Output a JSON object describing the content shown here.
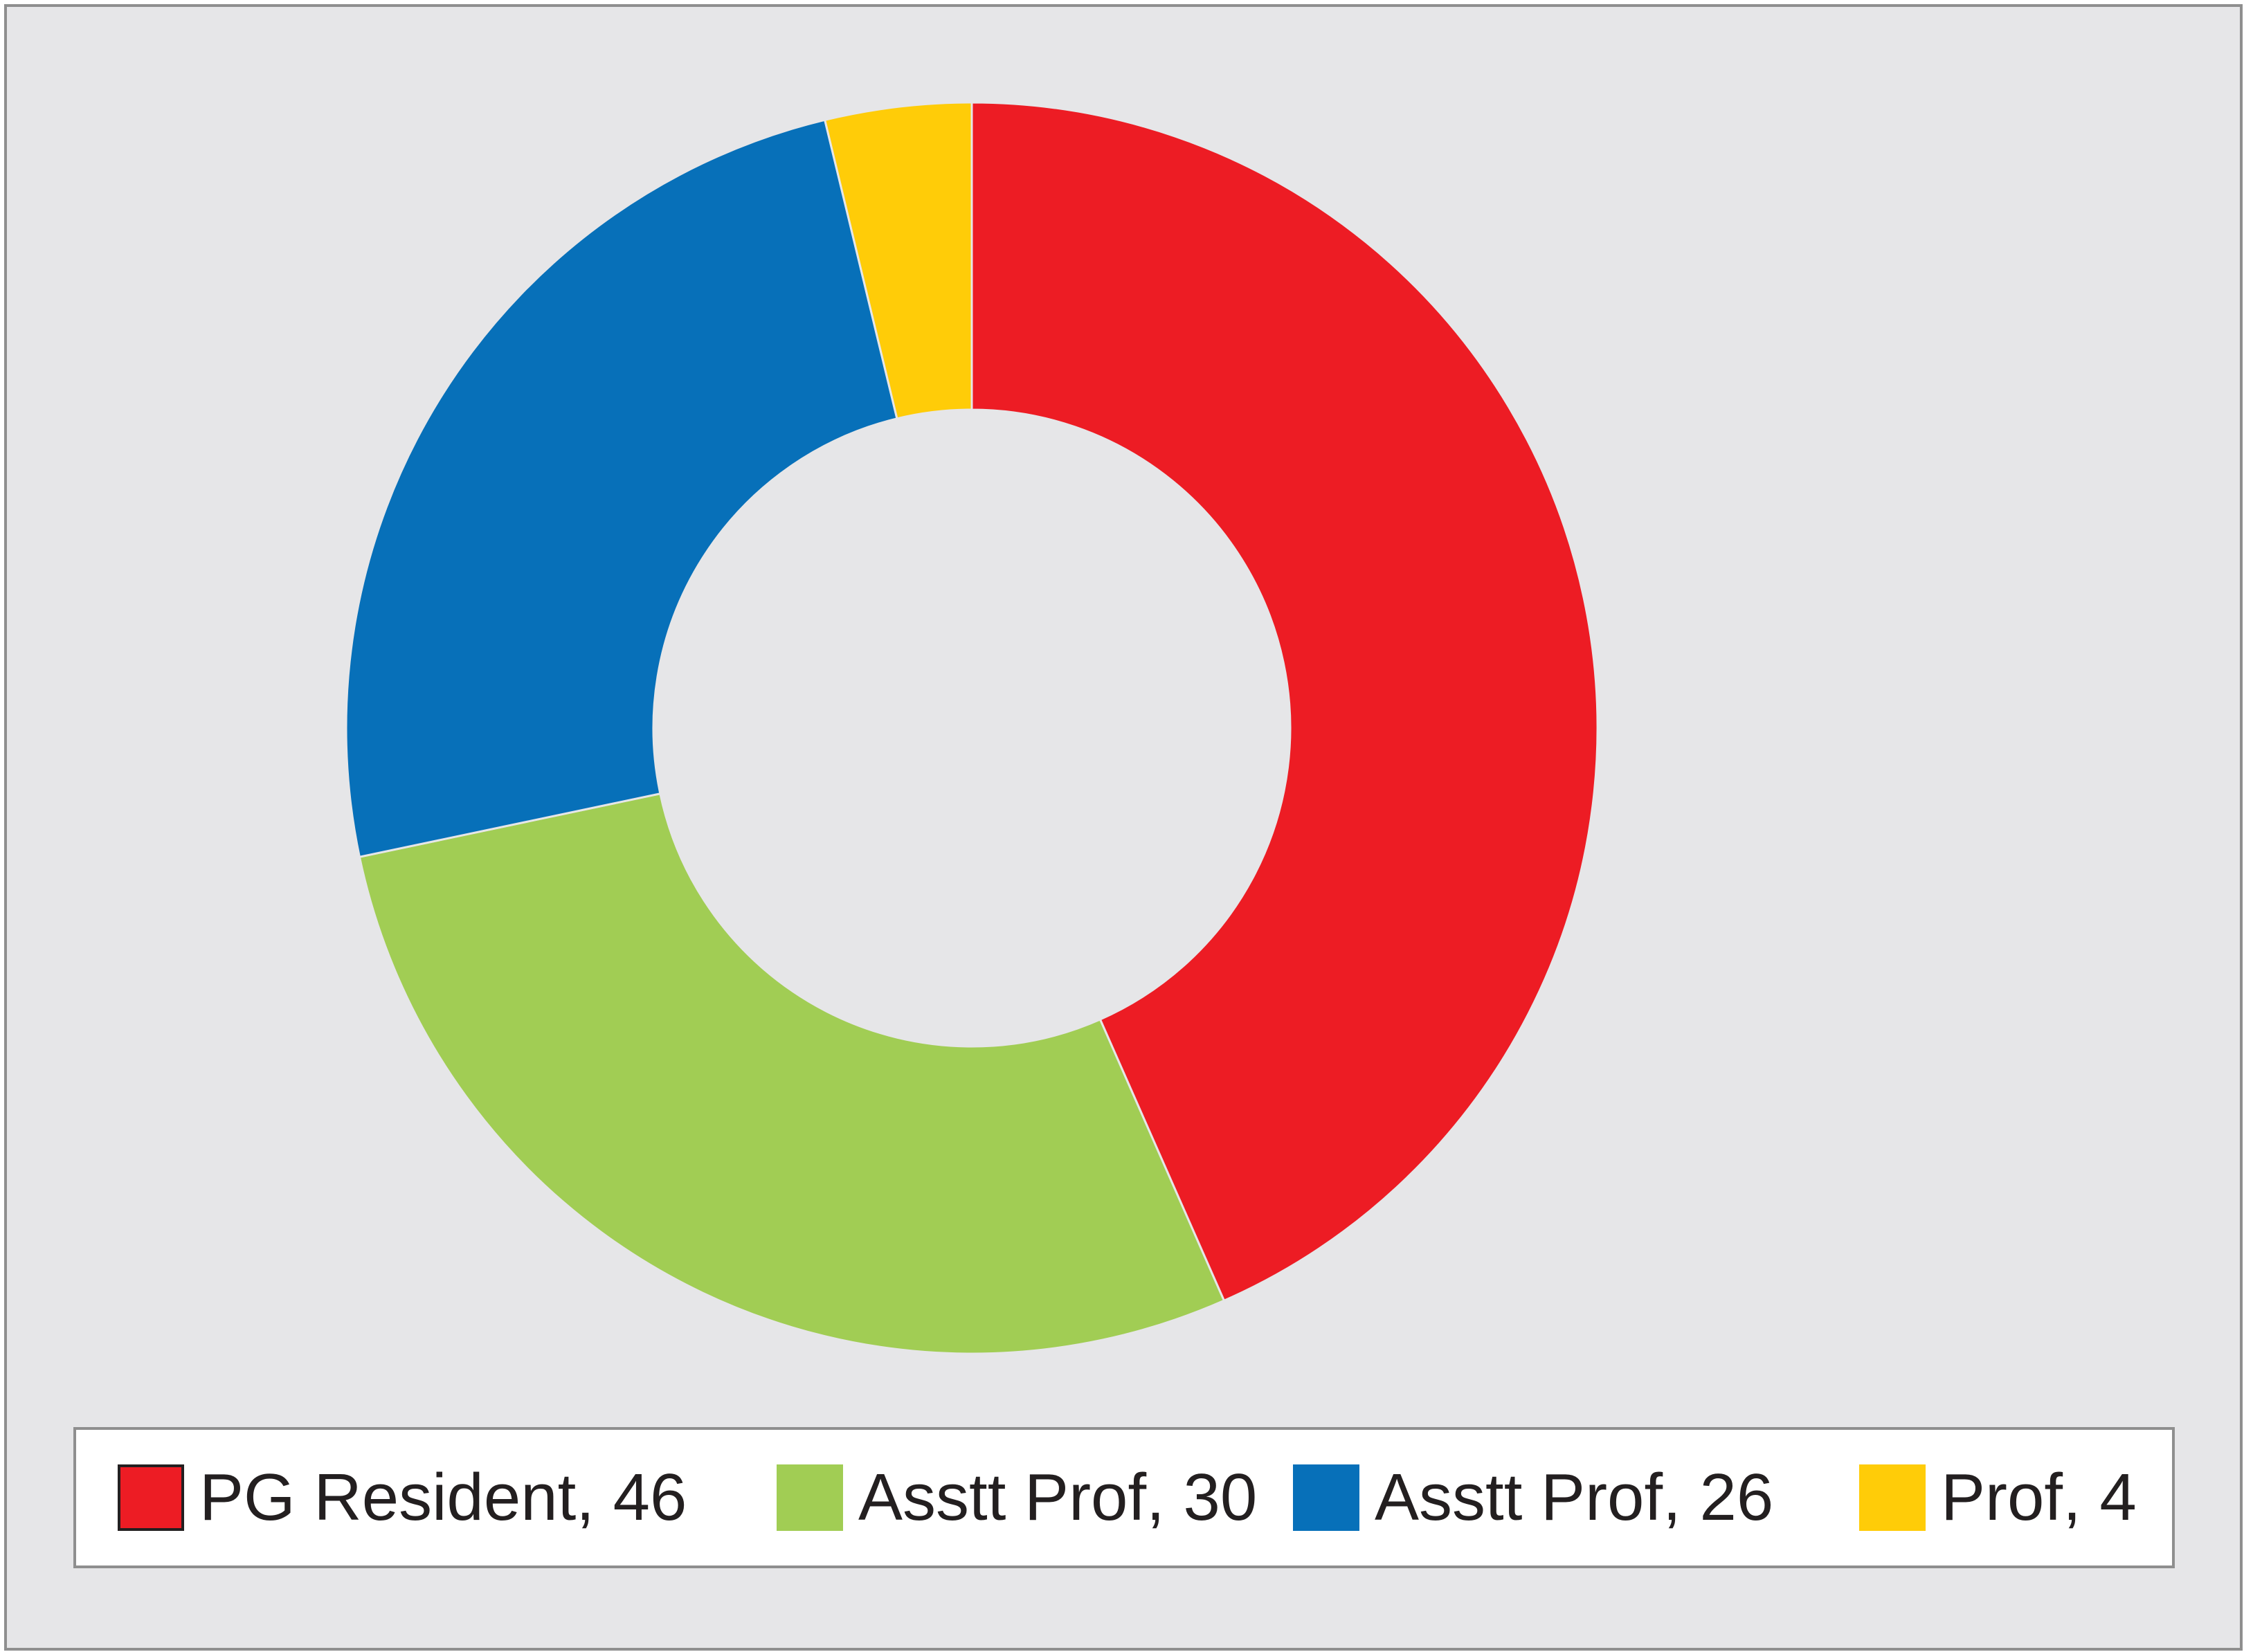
{
  "chart_data": {
    "type": "pie",
    "variant": "donut",
    "title": "",
    "legend_position": "bottom",
    "slices": [
      {
        "label": "PG Resident, 46",
        "value": 46,
        "color": "#ed1c24"
      },
      {
        "label": "Asstt Prof, 30",
        "value": 30,
        "color": "#a1cd54"
      },
      {
        "label": "Asstt Prof, 26",
        "value": 26,
        "color": "#0770b9"
      },
      {
        "label": "Prof, 4",
        "value": 4,
        "color": "#ffcc08"
      }
    ]
  }
}
